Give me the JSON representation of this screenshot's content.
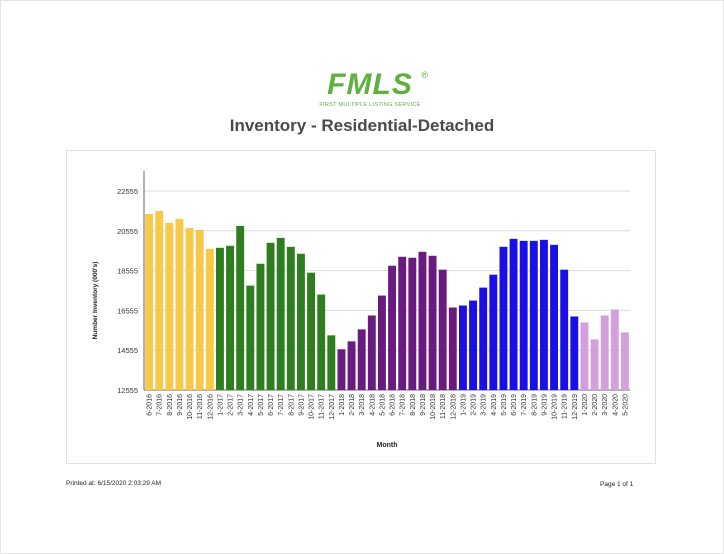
{
  "logo": {
    "name": "FMLS",
    "reg": "®",
    "tagline": "FIRST MULTIPLE LISTING SERVICE"
  },
  "report": {
    "title": "Inventory - Residential-Detached",
    "printed_label": "Printed at:",
    "printed_at": "6/15/2020 2:03:29 AM",
    "page_label": "Page 1 of 1"
  },
  "colors": {
    "2016": "#f7c84a",
    "2017": "#2e7d1e",
    "2018": "#6a1b7f",
    "2019": "#1a10e6",
    "2020": "#d4a0dc",
    "grid": "#dddddd",
    "axis": "#666666",
    "text": "#333333"
  },
  "chart_data": {
    "type": "bar",
    "xlabel": "Month",
    "ylabel": "Number Inventory (000's)",
    "ylim": [
      12555,
      22555
    ],
    "yticks": [
      12555,
      14555,
      16555,
      18555,
      20555,
      22555
    ],
    "grid": true,
    "categories": [
      "6-2016",
      "7-2016",
      "8-2016",
      "9-2016",
      "10-2016",
      "11-2016",
      "12-2016",
      "1-2017",
      "2-2017",
      "3-2017",
      "4-2017",
      "5-2017",
      "6-2017",
      "7-2017",
      "8-2017",
      "9-2017",
      "10-2017",
      "11-2017",
      "12-2017",
      "1-2018",
      "2-2018",
      "3-2018",
      "4-2018",
      "5-2018",
      "6-2018",
      "7-2018",
      "8-2018",
      "9-2018",
      "10-2018",
      "11-2018",
      "12-2018",
      "1-2019",
      "2-2019",
      "3-2019",
      "4-2019",
      "5-2019",
      "6-2019",
      "7-2019",
      "8-2019",
      "9-2019",
      "10-2019",
      "11-2019",
      "12-2019",
      "1-2020",
      "2-2020",
      "3-2020",
      "4-2020",
      "5-2020"
    ],
    "values": [
      21400,
      21550,
      20950,
      21150,
      20700,
      20600,
      19650,
      19700,
      19800,
      20800,
      17800,
      18900,
      19950,
      20200,
      19750,
      19400,
      18450,
      17350,
      15300,
      14600,
      15000,
      15600,
      16300,
      17300,
      18800,
      19250,
      19200,
      19500,
      19300,
      18600,
      16700,
      16800,
      17050,
      17700,
      18350,
      19750,
      20150,
      20050,
      20050,
      20100,
      19850,
      18600,
      16250,
      15950,
      15100,
      16300,
      16600,
      15450
    ],
    "years": [
      "2016",
      "2016",
      "2016",
      "2016",
      "2016",
      "2016",
      "2016",
      "2017",
      "2017",
      "2017",
      "2017",
      "2017",
      "2017",
      "2017",
      "2017",
      "2017",
      "2017",
      "2017",
      "2017",
      "2018",
      "2018",
      "2018",
      "2018",
      "2018",
      "2018",
      "2018",
      "2018",
      "2018",
      "2018",
      "2018",
      "2018",
      "2019",
      "2019",
      "2019",
      "2019",
      "2019",
      "2019",
      "2019",
      "2019",
      "2019",
      "2019",
      "2019",
      "2019",
      "2020",
      "2020",
      "2020",
      "2020",
      "2020"
    ]
  }
}
